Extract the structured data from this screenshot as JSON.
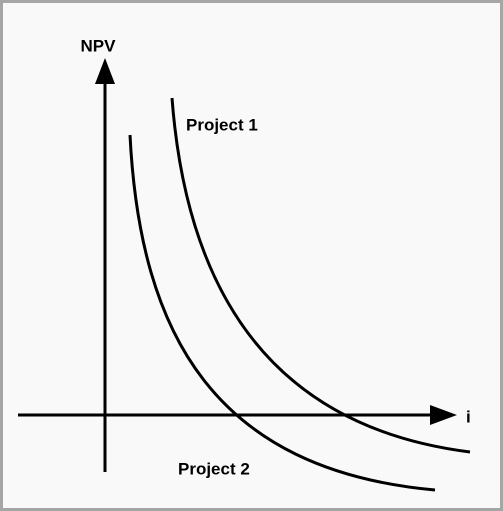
{
  "axes": {
    "y_label": "NPV",
    "x_label": "i"
  },
  "curves": [
    {
      "label": "Project 1"
    },
    {
      "label": "Project 2"
    }
  ]
}
